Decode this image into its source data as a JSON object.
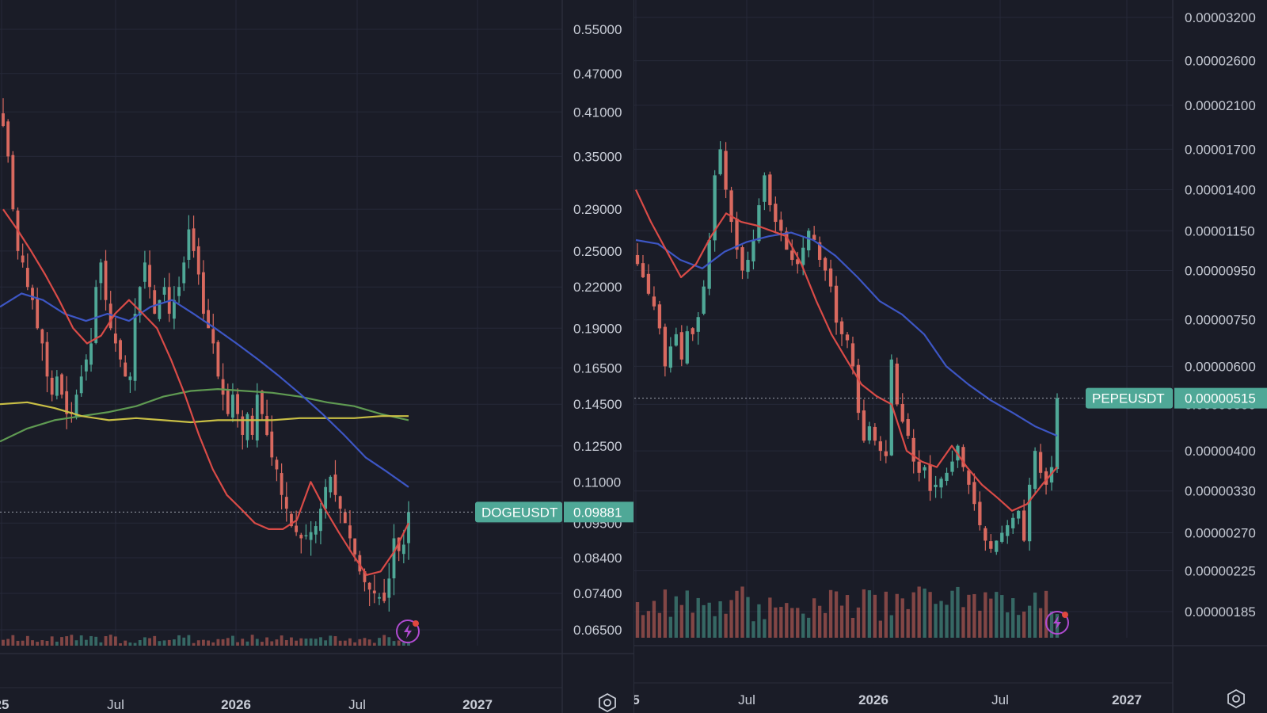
{
  "colors": {
    "background": "#1a1c27",
    "grid": "#262938",
    "up": "#4fa897",
    "down": "#d9695f",
    "ma_red": "#d94b47",
    "ma_blue": "#3d56c4",
    "ma_green": "#5f9a52",
    "ma_yellow": "#c9bf45",
    "price_label": "#4fa897",
    "flash_icon": "#b04bd1"
  },
  "chart_data": [
    {
      "type": "candlestick",
      "symbol_label": "DOGEUSDT",
      "last_price": "0.09881",
      "y_scale": "log",
      "y_ticks": [
        "0.55000",
        "0.47000",
        "0.41000",
        "0.35000",
        "0.29000",
        "0.25000",
        "0.22000",
        "0.19000",
        "0.16500",
        "0.14500",
        "0.12500",
        "0.11000",
        "0.09500",
        "0.08400",
        "0.07400",
        "0.06500"
      ],
      "x_ticks": [
        {
          "label": "25",
          "bold": true
        },
        {
          "label": "Jul",
          "bold": false
        },
        {
          "label": "2026",
          "bold": true
        },
        {
          "label": "Jul",
          "bold": false
        },
        {
          "label": "2027",
          "bold": true
        }
      ],
      "close_path": [
        0.39,
        0.35,
        0.29,
        0.25,
        0.24,
        0.22,
        0.21,
        0.19,
        0.18,
        0.16,
        0.15,
        0.16,
        0.15,
        0.14,
        0.14,
        0.15,
        0.16,
        0.17,
        0.18,
        0.22,
        0.24,
        0.21,
        0.19,
        0.18,
        0.17,
        0.16,
        0.16,
        0.2,
        0.22,
        0.24,
        0.22,
        0.2,
        0.21,
        0.22,
        0.2,
        0.21,
        0.22,
        0.24,
        0.27,
        0.25,
        0.23,
        0.2,
        0.19,
        0.18,
        0.16,
        0.15,
        0.14,
        0.15,
        0.14,
        0.13,
        0.14,
        0.13,
        0.15,
        0.14,
        0.13,
        0.12,
        0.115,
        0.105,
        0.1,
        0.094,
        0.092,
        0.09,
        0.091,
        0.092,
        0.094,
        0.1,
        0.108,
        0.112,
        0.105,
        0.1,
        0.095,
        0.09,
        0.085,
        0.08,
        0.077,
        0.075,
        0.074,
        0.073,
        0.072,
        0.078,
        0.09,
        0.086,
        0.088,
        0.0988
      ],
      "ma_red": [
        0.29,
        0.27,
        0.25,
        0.23,
        0.21,
        0.19,
        0.18,
        0.185,
        0.2,
        0.21,
        0.2,
        0.19,
        0.17,
        0.15,
        0.13,
        0.115,
        0.105,
        0.1,
        0.095,
        0.093,
        0.093,
        0.096,
        0.11,
        0.1,
        0.092,
        0.085,
        0.079,
        0.08,
        0.086,
        0.095
      ],
      "ma_blue": [
        0.205,
        0.215,
        0.21,
        0.2,
        0.195,
        0.2,
        0.195,
        0.205,
        0.21,
        0.2,
        0.19,
        0.18,
        0.17,
        0.16,
        0.15,
        0.14,
        0.13,
        0.12,
        0.114,
        0.108
      ],
      "ma_green": [
        0.127,
        0.133,
        0.137,
        0.139,
        0.141,
        0.144,
        0.149,
        0.152,
        0.153,
        0.152,
        0.151,
        0.149,
        0.146,
        0.144,
        0.14,
        0.137
      ],
      "ma_yellow": [
        0.145,
        0.146,
        0.143,
        0.139,
        0.137,
        0.138,
        0.137,
        0.136,
        0.137,
        0.137,
        0.137,
        0.138,
        0.138,
        0.138,
        0.139,
        0.139
      ]
    },
    {
      "type": "candlestick",
      "symbol_label": "PEPEUSDT",
      "last_price": "0.00000515",
      "y_scale": "log",
      "y_ticks": [
        "0.00003200",
        "0.00002600",
        "0.00002100",
        "0.00001700",
        "0.00001400",
        "0.00001150",
        "0.00000950",
        "0.00000750",
        "0.00000600",
        "0.00000500",
        "0.00000400",
        "0.00000330",
        "0.00000270",
        "0.00000225",
        "0.00000185"
      ],
      "x_ticks": [
        {
          "label": "5",
          "bold": true
        },
        {
          "label": "Jul",
          "bold": false
        },
        {
          "label": "2026",
          "bold": true
        },
        {
          "label": "Jul",
          "bold": false
        },
        {
          "label": "2027",
          "bold": true
        }
      ],
      "close_path": [
        9.8e-06,
        9.2e-06,
        8.5e-06,
        8e-06,
        7.2e-06,
        6e-06,
        6.6e-06,
        7e-06,
        6.2e-06,
        7.1e-06,
        7e-06,
        7.6e-06,
        8.8e-06,
        1.1e-05,
        1.5e-05,
        1.7e-05,
        1.4e-05,
        1.2e-05,
        1.05e-05,
        9.5e-06,
        1e-05,
        1.1e-05,
        1.3e-05,
        1.5e-05,
        1.3e-05,
        1.2e-05,
        1.15e-05,
        1.05e-05,
        1e-05,
        9.8e-06,
        1.06e-05,
        1.15e-05,
        1.1e-05,
        1e-05,
        9.5e-06,
        8.8e-06,
        7.4e-06,
        7e-06,
        6.8e-06,
        6e-06,
        4.8e-06,
        4.2e-06,
        4.5e-06,
        4.2e-06,
        4e-06,
        3.9e-06,
        6.2e-06,
        5e-06,
        4.6e-06,
        4.3e-06,
        3.8e-06,
        3.6e-06,
        3.7e-06,
        3.3e-06,
        3.4e-06,
        3.5e-06,
        3.6e-06,
        3.8e-06,
        4.1e-06,
        3.7e-06,
        3.4e-06,
        3.1e-06,
        2.8e-06,
        2.6e-06,
        2.5e-06,
        2.6e-06,
        2.7e-06,
        2.8e-06,
        2.9e-06,
        3e-06,
        2.6e-06,
        3.4e-06,
        4e-06,
        3.6e-06,
        3.4e-06,
        3.7e-06,
        5.15e-06
      ],
      "ma_red": [
        1.4e-05,
        1.2e-05,
        1.05e-05,
        9.2e-06,
        9.8e-06,
        1.12e-05,
        1.25e-05,
        1.2e-05,
        1.18e-05,
        1.15e-05,
        1.12e-05,
        9.8e-06,
        8.2e-06,
        7e-06,
        6.2e-06,
        5.5e-06,
        5.2e-06,
        5e-06,
        4e-06,
        3.8e-06,
        3.7e-06,
        4.1e-06,
        3.7e-06,
        3.4e-06,
        3.2e-06,
        3e-06,
        3.1e-06,
        3.4e-06,
        3.7e-06
      ],
      "ma_blue": [
        1.1e-05,
        1.08e-05,
        1e-05,
        9.6e-06,
        1.04e-05,
        1.09e-05,
        1.12e-05,
        1.14e-05,
        1.1e-05,
        1.02e-05,
        9.2e-06,
        8.2e-06,
        7.7e-06,
        7e-06,
        6e-06,
        5.5e-06,
        5.1e-06,
        4.8e-06,
        4.5e-06,
        4.3e-06
      ]
    }
  ]
}
